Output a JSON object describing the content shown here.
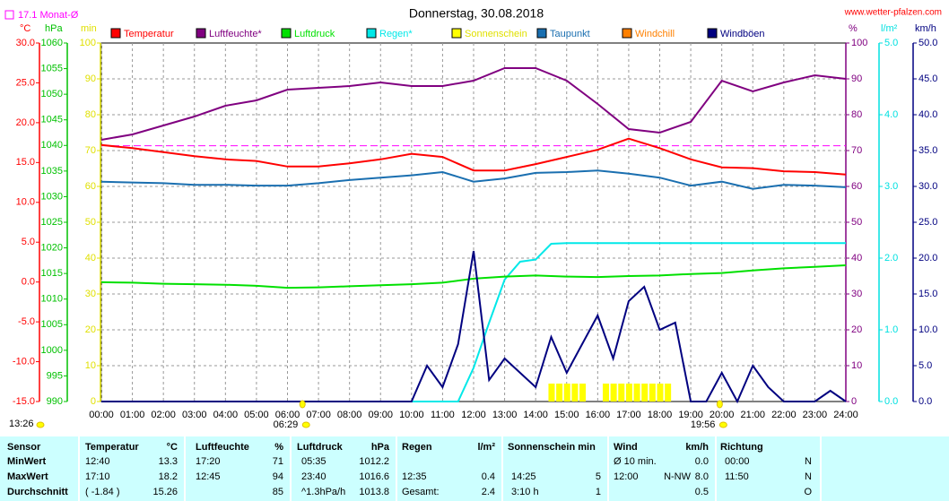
{
  "chart_data": {
    "type": "line",
    "title": "Donnerstag, 30.08.2018",
    "source": "www.wetter-pfalzen.com",
    "updated": "13:26",
    "avg_line": {
      "label": "17.1 Monat-Ø",
      "value": 17.1,
      "color": "#ff00ff",
      "axis": "°C"
    },
    "sunrise": {
      "label": "06:29",
      "value": 6.4833
    },
    "sunset": {
      "label": "19:56",
      "value": 19.9333
    },
    "xlim": [
      0,
      24
    ],
    "xticks": [
      {
        "value": 0,
        "label": "00:00"
      },
      {
        "value": 1,
        "label": "01:00"
      },
      {
        "value": 2,
        "label": "02:00"
      },
      {
        "value": 3,
        "label": "03:00"
      },
      {
        "value": 4,
        "label": "04:00"
      },
      {
        "value": 5,
        "label": "05:00"
      },
      {
        "value": 6,
        "label": "06:00"
      },
      {
        "value": 7,
        "label": "07:00"
      },
      {
        "value": 8,
        "label": "08:00"
      },
      {
        "value": 9,
        "label": "09:00"
      },
      {
        "value": 10,
        "label": "10:00"
      },
      {
        "value": 11,
        "label": "11:00"
      },
      {
        "value": 12,
        "label": "12:00"
      },
      {
        "value": 13,
        "label": "13:00"
      },
      {
        "value": 14,
        "label": "14:00"
      },
      {
        "value": 15,
        "label": "15:00"
      },
      {
        "value": 16,
        "label": "16:00"
      },
      {
        "value": 17,
        "label": "17:00"
      },
      {
        "value": 18,
        "label": "18:00"
      },
      {
        "value": 19,
        "label": "19:00"
      },
      {
        "value": 20,
        "label": "20:00"
      },
      {
        "value": 21,
        "label": "21:00"
      },
      {
        "value": 22,
        "label": "22:00"
      },
      {
        "value": 23,
        "label": "23:00"
      },
      {
        "value": 24,
        "label": "24:00"
      }
    ],
    "grid": true,
    "axes": [
      {
        "unit": "°C",
        "color": "#ff0000",
        "lim": [
          -15,
          30
        ],
        "ticks": [
          {
            "value": -15,
            "label": "-15.0"
          },
          {
            "value": -10,
            "label": "-10.0"
          },
          {
            "value": -5,
            "label": "-5.0"
          },
          {
            "value": 0,
            "label": "0.0"
          },
          {
            "value": 5,
            "label": "5.0"
          },
          {
            "value": 10,
            "label": "10.0"
          },
          {
            "value": 15,
            "label": "15.0"
          },
          {
            "value": 20,
            "label": "20.0"
          },
          {
            "value": 25,
            "label": "25.0"
          },
          {
            "value": 30,
            "label": "30.0"
          }
        ]
      },
      {
        "unit": "hPa",
        "color": "#00c000",
        "lim": [
          990,
          1060
        ],
        "ticks": [
          990,
          995,
          1000,
          1005,
          1010,
          1015,
          1020,
          1025,
          1030,
          1035,
          1040,
          1045,
          1050,
          1055,
          1060
        ]
      },
      {
        "unit": "min",
        "color": "#e0e000",
        "lim": [
          0,
          100
        ],
        "ticks": [
          0,
          10,
          20,
          30,
          40,
          50,
          60,
          70,
          80,
          90,
          100
        ]
      },
      {
        "unit": "%",
        "color": "#800080",
        "lim": [
          0,
          100
        ],
        "ticks": [
          0,
          10,
          20,
          30,
          40,
          50,
          60,
          70,
          80,
          90,
          100
        ],
        "grid": true
      },
      {
        "unit": "l/m²",
        "color": "#00e0e0",
        "lim": [
          0,
          5
        ],
        "ticks": [
          {
            "value": 0,
            "label": "0.0"
          },
          {
            "value": 1,
            "label": "1.0"
          },
          {
            "value": 2,
            "label": "2.0"
          },
          {
            "value": 3,
            "label": "3.0"
          },
          {
            "value": 4,
            "label": "4.0"
          },
          {
            "value": 5,
            "label": "5.0"
          }
        ]
      },
      {
        "unit": "km/h",
        "color": "#000080",
        "lim": [
          0,
          50
        ],
        "ticks": [
          {
            "value": 0,
            "label": "0.0"
          },
          {
            "value": 5,
            "label": "5.0"
          },
          {
            "value": 10,
            "label": "10.0"
          },
          {
            "value": 15,
            "label": "15.0"
          },
          {
            "value": 20,
            "label": "20.0"
          },
          {
            "value": 25,
            "label": "25.0"
          },
          {
            "value": 30,
            "label": "30.0"
          },
          {
            "value": 35,
            "label": "35.0"
          },
          {
            "value": 40,
            "label": "40.0"
          },
          {
            "value": 45,
            "label": "45.0"
          },
          {
            "value": 50,
            "label": "50.0"
          }
        ]
      }
    ],
    "series": [
      {
        "name": "Temperatur",
        "color": "#ff0000",
        "axis": "°C",
        "kind": "line",
        "x": [
          0,
          1,
          2,
          3,
          4,
          5,
          6,
          7,
          8,
          9,
          10,
          11,
          12,
          13,
          14,
          15,
          16,
          17,
          18,
          19,
          20,
          21,
          22,
          23,
          24
        ],
        "values": [
          17.2,
          16.8,
          16.3,
          15.8,
          15.4,
          15.2,
          14.5,
          14.5,
          14.9,
          15.4,
          16.1,
          15.7,
          14.0,
          14.0,
          14.8,
          15.7,
          16.6,
          18.0,
          16.8,
          15.4,
          14.4,
          14.3,
          13.9,
          13.8,
          13.5
        ]
      },
      {
        "name": "Luftfeuchte*",
        "color": "#800080",
        "axis": "%",
        "kind": "line",
        "x": [
          0,
          1,
          2,
          3,
          4,
          5,
          6,
          7,
          8,
          9,
          10,
          11,
          12,
          13,
          14,
          15,
          16,
          17,
          18,
          19,
          20,
          21,
          22,
          23,
          24
        ],
        "values": [
          73,
          74.5,
          77,
          79.5,
          82.5,
          84,
          87,
          87.5,
          88,
          89,
          88,
          88,
          89.5,
          93,
          93,
          89.5,
          83,
          76,
          75,
          78,
          89.5,
          86.5,
          89,
          91,
          90
        ]
      },
      {
        "name": "Luftdruck",
        "color": "#00e000",
        "axis": "hPa",
        "kind": "line",
        "x": [
          0,
          1,
          2,
          3,
          4,
          5,
          6,
          7,
          8,
          9,
          10,
          11,
          12,
          13,
          14,
          15,
          16,
          17,
          18,
          19,
          20,
          21,
          22,
          23,
          24
        ],
        "values": [
          1013.3,
          1013.2,
          1013.0,
          1012.9,
          1012.8,
          1012.6,
          1012.2,
          1012.3,
          1012.5,
          1012.7,
          1012.9,
          1013.2,
          1014.0,
          1014.4,
          1014.6,
          1014.4,
          1014.3,
          1014.5,
          1014.6,
          1014.9,
          1015.1,
          1015.6,
          1016.0,
          1016.3,
          1016.6
        ]
      },
      {
        "name": "Regen*",
        "color": "#00e8e8",
        "axis": "l/m²",
        "kind": "line",
        "x": [
          0,
          11.5,
          12,
          12.5,
          13,
          13.5,
          14,
          14.5,
          15,
          24
        ],
        "values": [
          0,
          0,
          0.47,
          1.1,
          1.7,
          1.95,
          1.98,
          2.2,
          2.21,
          2.21
        ]
      },
      {
        "name": "Sonnenschein",
        "color": "#ffff00",
        "axis": "min",
        "kind": "bar",
        "x": [
          14.5,
          14.75,
          15,
          15.25,
          15.5,
          16.25,
          16.5,
          16.75,
          17,
          17.25,
          17.5,
          17.75,
          18,
          18.25
        ],
        "values": [
          5,
          5,
          5,
          5,
          5,
          5,
          5,
          5,
          5,
          5,
          5,
          5,
          5,
          5
        ]
      },
      {
        "name": "Taupunkt",
        "color": "#1a6fb0",
        "axis": "°C",
        "kind": "line",
        "x": [
          0,
          1,
          2,
          3,
          4,
          5,
          6,
          7,
          8,
          9,
          10,
          11,
          12,
          13,
          14,
          15,
          16,
          17,
          18,
          19,
          20,
          21,
          22,
          23,
          24
        ],
        "values": [
          12.6,
          12.5,
          12.4,
          12.2,
          12.2,
          12.1,
          12.1,
          12.4,
          12.8,
          13.1,
          13.4,
          13.8,
          12.6,
          13.0,
          13.7,
          13.8,
          14.0,
          13.6,
          13.1,
          12.1,
          12.6,
          11.7,
          12.2,
          12.1,
          11.9
        ]
      },
      {
        "name": "Windchill",
        "color": "#ff8000",
        "axis": "°C",
        "kind": "line",
        "x": [],
        "values": []
      },
      {
        "name": "Windböen",
        "color": "#000080",
        "axis": "km/h",
        "kind": "line",
        "x": [
          0,
          0.5,
          1,
          1.5,
          2,
          2.5,
          3,
          3.5,
          4,
          4.5,
          5,
          5.5,
          6,
          6.5,
          7,
          7.5,
          8,
          8.5,
          9,
          9.5,
          10,
          10.5,
          11,
          11.5,
          12,
          12.5,
          13,
          13.5,
          14,
          14.5,
          15,
          15.5,
          16,
          16.5,
          17,
          17.5,
          18,
          18.5,
          19,
          19.5,
          20,
          20.5,
          21,
          21.5,
          22,
          22.5,
          23,
          23.5,
          24
        ],
        "values": [
          0,
          0,
          0,
          0,
          0,
          0,
          0,
          0,
          0,
          0,
          0,
          0,
          0,
          0,
          0,
          0,
          0,
          0,
          0,
          0,
          0,
          5,
          2,
          8,
          21,
          3,
          6,
          4,
          2,
          9,
          4,
          8,
          12,
          6,
          14,
          16,
          10,
          11,
          0,
          0,
          4,
          0,
          5,
          2,
          0,
          0,
          0,
          1.5,
          0
        ]
      }
    ]
  },
  "table": {
    "header": [
      "Sensor",
      "Temperatur",
      "°C",
      "Luftfeuchte",
      "%",
      "Luftdruck",
      "hPa",
      "Regen",
      "l/m²",
      "Sonnenschein min",
      "Wind",
      "km/h",
      "Richtung"
    ],
    "rows": [
      [
        "MinWert",
        "12:40",
        "13.3",
        "17:20",
        "71",
        "05:35",
        "1012.2",
        null,
        null,
        null,
        null,
        "Ø 10 min.",
        null,
        "0.0",
        "00:00",
        "N"
      ],
      [
        "MaxWert",
        "17:10",
        "18.2",
        "12:45",
        "94",
        "23:40",
        "1016.6",
        "12:35",
        "0.4",
        "14:25",
        "5",
        "12:00",
        "N-NW",
        "8.0",
        "11:50",
        "N"
      ],
      [
        "Durchschnitt",
        "( -1.84 )",
        "15.26",
        null,
        "85",
        "^1.3hPa/h",
        "1013.8",
        "Gesamt:",
        "2.4",
        "3:10 h",
        "1",
        null,
        null,
        "0.5",
        null,
        "O"
      ]
    ]
  }
}
